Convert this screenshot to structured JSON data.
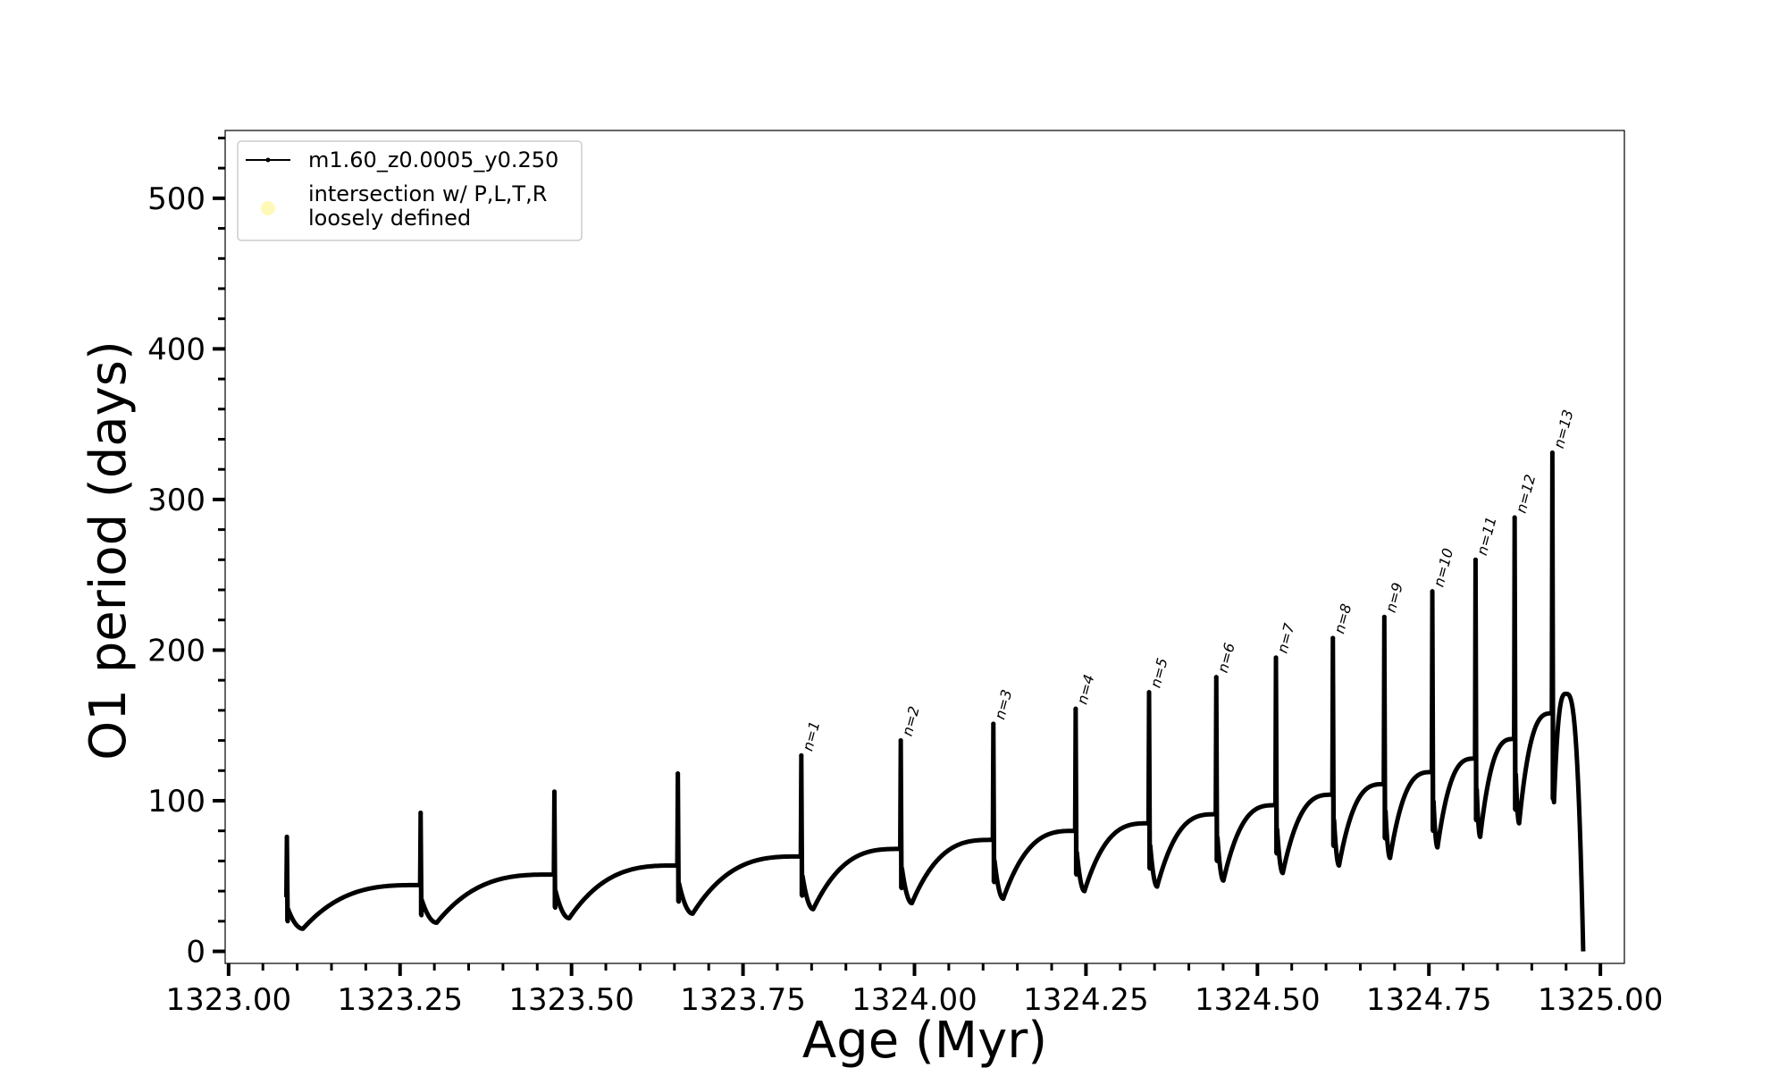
{
  "chart_data": {
    "type": "line",
    "title": "",
    "xlabel": "Age (Myr)",
    "ylabel": "O1 period (days)",
    "xlim": [
      1322.995,
      1325.035
    ],
    "ylim": [
      -8,
      545
    ],
    "x_ticks": [
      1323.0,
      1323.25,
      1323.5,
      1323.75,
      1324.0,
      1324.25,
      1324.5,
      1324.75,
      1325.0
    ],
    "x_tick_labels": [
      "1323.00",
      "1323.25",
      "1323.50",
      "1323.75",
      "1324.00",
      "1324.25",
      "1324.50",
      "1324.75",
      "1325.00"
    ],
    "y_ticks": [
      0,
      100,
      200,
      300,
      400,
      500
    ],
    "y_tick_labels": [
      "0",
      "100",
      "200",
      "300",
      "400",
      "500"
    ],
    "y_minor_step": 20,
    "legend": {
      "position": "upper-left",
      "entries": [
        {
          "label": "m1.60_z0.0005_y0.250",
          "marker": "line-dot",
          "color": "#000000"
        },
        {
          "label_lines": [
            "intersection w/ P,L,T,R",
            "loosely defined"
          ],
          "marker": "circle",
          "color": "#fff8b0"
        }
      ]
    },
    "series": [
      {
        "name": "m1.60_z0.0005_y0.250",
        "color": "#000000",
        "pulses": [
          {
            "label": "",
            "x": 1323.085,
            "peak": 76,
            "pre": 36,
            "low": 20,
            "post_min": 15,
            "recover": 44,
            "next_pre": 44
          },
          {
            "label": "",
            "x": 1323.28,
            "peak": 92,
            "pre": 44,
            "low": 24,
            "post_min": 19,
            "recover": 51,
            "next_pre": 51
          },
          {
            "label": "",
            "x": 1323.475,
            "peak": 106,
            "pre": 51,
            "low": 29,
            "post_min": 22,
            "recover": 57,
            "next_pre": 57
          },
          {
            "label": "",
            "x": 1323.655,
            "peak": 118,
            "pre": 57,
            "low": 33,
            "post_min": 25,
            "recover": 63,
            "next_pre": 63
          },
          {
            "label": "n=1",
            "x": 1323.835,
            "peak": 130,
            "pre": 63,
            "low": 37,
            "post_min": 28,
            "recover": 68,
            "next_pre": 68
          },
          {
            "label": "n=2",
            "x": 1323.98,
            "peak": 140,
            "pre": 68,
            "low": 42,
            "post_min": 32,
            "recover": 74,
            "next_pre": 74
          },
          {
            "label": "n=3",
            "x": 1324.115,
            "peak": 151,
            "pre": 74,
            "low": 46,
            "post_min": 35,
            "recover": 80,
            "next_pre": 80
          },
          {
            "label": "n=4",
            "x": 1324.235,
            "peak": 161,
            "pre": 80,
            "low": 51,
            "post_min": 40,
            "recover": 85,
            "next_pre": 85
          },
          {
            "label": "n=5",
            "x": 1324.342,
            "peak": 172,
            "pre": 85,
            "low": 55,
            "post_min": 43,
            "recover": 91,
            "next_pre": 91
          },
          {
            "label": "n=6",
            "x": 1324.44,
            "peak": 182,
            "pre": 91,
            "low": 60,
            "post_min": 47,
            "recover": 97,
            "next_pre": 97
          },
          {
            "label": "n=7",
            "x": 1324.527,
            "peak": 195,
            "pre": 97,
            "low": 65,
            "post_min": 52,
            "recover": 104,
            "next_pre": 104
          },
          {
            "label": "n=8",
            "x": 1324.61,
            "peak": 208,
            "pre": 104,
            "low": 70,
            "post_min": 57,
            "recover": 111,
            "next_pre": 111
          },
          {
            "label": "n=9",
            "x": 1324.685,
            "peak": 222,
            "pre": 111,
            "low": 75,
            "post_min": 62,
            "recover": 119,
            "next_pre": 119
          },
          {
            "label": "n=10",
            "x": 1324.755,
            "peak": 239,
            "pre": 119,
            "low": 80,
            "post_min": 69,
            "recover": 128,
            "next_pre": 128
          },
          {
            "label": "n=11",
            "x": 1324.818,
            "peak": 260,
            "pre": 128,
            "low": 87,
            "post_min": 76,
            "recover": 141,
            "next_pre": 141
          },
          {
            "label": "n=12",
            "x": 1324.875,
            "peak": 288,
            "pre": 141,
            "low": 94,
            "post_min": 85,
            "recover": 158,
            "next_pre": 158
          },
          {
            "label": "n=13",
            "x": 1324.93,
            "peak": 331,
            "pre": 158,
            "low": 101,
            "post_min": 99,
            "recover": 170,
            "next_pre": 0
          }
        ],
        "final_drop": {
          "x_peak": 1324.95,
          "peak": 171,
          "x_end": 1324.975,
          "end": 0
        }
      }
    ]
  }
}
